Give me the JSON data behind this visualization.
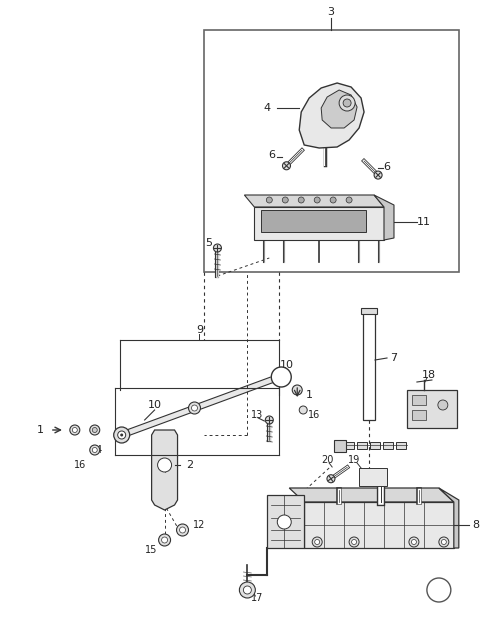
{
  "bg_color": "#ffffff",
  "lc": "#333333",
  "tc": "#222222",
  "fig_w": 4.8,
  "fig_h": 6.31,
  "dpi": 100
}
